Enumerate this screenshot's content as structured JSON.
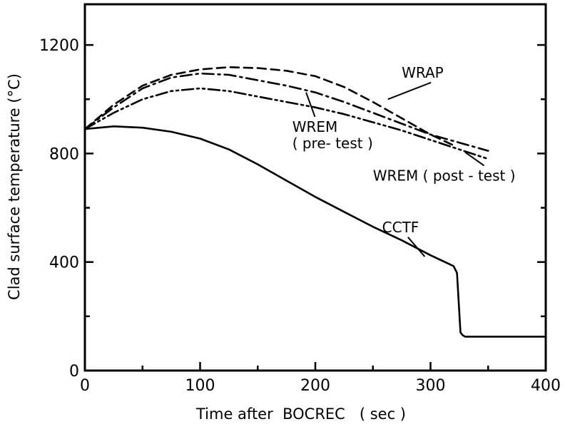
{
  "chart_data": {
    "type": "line",
    "title": "",
    "xlabel": "Time after  BOCREC   ( sec )",
    "ylabel": "Clad surface temperature  (°C)",
    "xlim": [
      0,
      400
    ],
    "ylim": [
      0,
      1350
    ],
    "xticks": [
      0,
      100,
      200,
      300,
      400
    ],
    "yticks": [
      0,
      400,
      800,
      1200
    ],
    "xtick_labels": [
      "0",
      "100",
      "200",
      "300",
      "400"
    ],
    "ytick_labels": [
      "0",
      "400",
      "800",
      "1200"
    ],
    "grid": false,
    "series": [
      {
        "name": "WRAP",
        "dash": "dashed",
        "x": [
          0,
          25,
          50,
          75,
          100,
          125,
          150,
          175,
          200,
          225,
          250,
          275,
          300,
          320
        ],
        "y": [
          890,
          980,
          1050,
          1090,
          1110,
          1118,
          1115,
          1105,
          1085,
          1045,
          990,
          930,
          870,
          830
        ]
      },
      {
        "name": "WREM (pre-test)",
        "dash": "dash-dot",
        "x": [
          0,
          25,
          50,
          75,
          100,
          125,
          150,
          175,
          200,
          225,
          250,
          275,
          300,
          325,
          350
        ],
        "y": [
          890,
          970,
          1040,
          1080,
          1095,
          1090,
          1070,
          1050,
          1025,
          990,
          950,
          910,
          870,
          840,
          810
        ]
      },
      {
        "name": "WREM (post-test)",
        "dash": "dash-dot-dot",
        "x": [
          0,
          25,
          50,
          75,
          100,
          125,
          150,
          175,
          200,
          225,
          250,
          275,
          300,
          325,
          350
        ],
        "y": [
          890,
          950,
          1000,
          1030,
          1040,
          1030,
          1010,
          990,
          970,
          945,
          915,
          885,
          850,
          815,
          780
        ]
      },
      {
        "name": "CCTF",
        "dash": "solid",
        "x": [
          0,
          25,
          50,
          75,
          100,
          125,
          150,
          175,
          200,
          225,
          250,
          275,
          300,
          320,
          323,
          326,
          328,
          330,
          360,
          400
        ],
        "y": [
          890,
          900,
          895,
          880,
          855,
          815,
          760,
          700,
          640,
          585,
          530,
          480,
          425,
          385,
          360,
          140,
          130,
          125,
          125,
          125
        ]
      }
    ],
    "annotations": [
      {
        "text": "WRAP",
        "x": 275,
        "y": 1080,
        "target_x": 263,
        "target_y": 1000
      },
      {
        "text": "WREM",
        "x": 180,
        "y": 880,
        "target_x": 192,
        "target_y": 1025
      },
      {
        "text": "( pre- test )",
        "x": 180,
        "y": 820
      },
      {
        "text": "WREM ( post - test )",
        "x": 250,
        "y": 700,
        "target_x": 330,
        "target_y": 805
      },
      {
        "text": "CCTF",
        "x": 258,
        "y": 510,
        "target_x": 295,
        "target_y": 420
      }
    ]
  }
}
